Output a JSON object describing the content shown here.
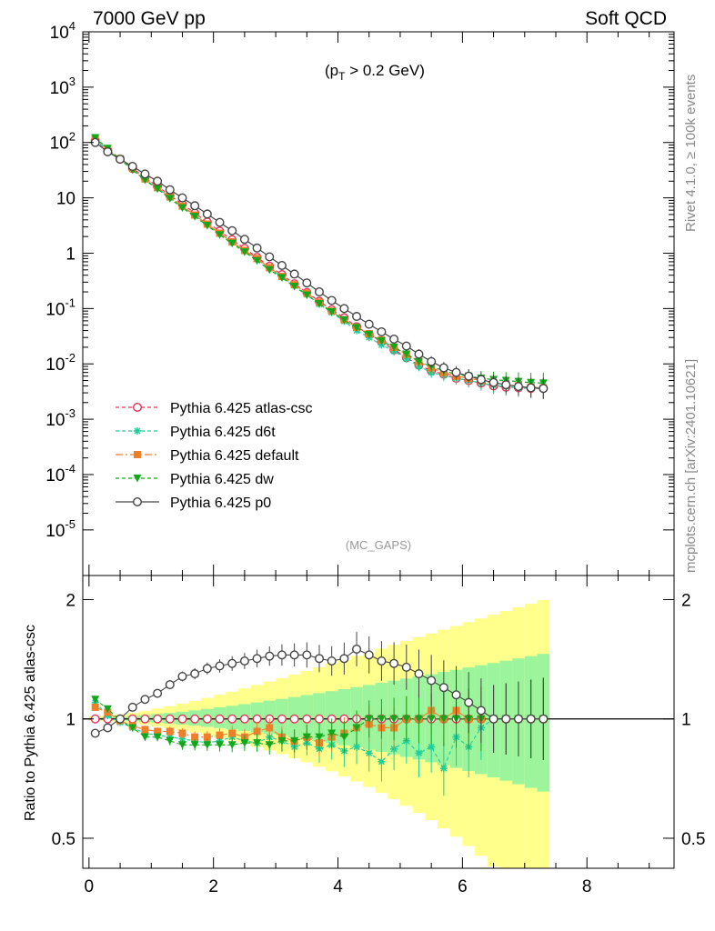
{
  "header": {
    "left": "7000 GeV pp",
    "right": "Soft QCD"
  },
  "side": {
    "rivet": "Rivet 4.1.0, ≥ 100k events",
    "mcplots": "mcplots.cern.ch [arXiv:2401.10621]"
  },
  "main": {
    "cut_label": "(p",
    "cut_sub": "T",
    "cut_rest": " > 0.2 GeV)",
    "watermark": "(MC_GAPS)"
  },
  "ratio": {
    "ylabel": "Ratio to Pythia 6.425 atlas-csc"
  },
  "legend": [
    {
      "label": "Pythia 6.425 atlas-csc",
      "color": "#e8325a",
      "marker": "open-circle",
      "dash": "4,3"
    },
    {
      "label": "Pythia 6.425 d6t",
      "color": "#1fcf9a",
      "marker": "star",
      "dash": "4,3"
    },
    {
      "label": "Pythia 6.425 default",
      "color": "#f07f2a",
      "marker": "square",
      "dash": "8,3,2,3"
    },
    {
      "label": "Pythia 6.425 dw",
      "color": "#11a81b",
      "marker": "down-triangle",
      "dash": "4,3"
    },
    {
      "label": "Pythia 6.425 p0",
      "color": "#454545",
      "marker": "open-circle",
      "dash": ""
    }
  ],
  "chart_data": [
    {
      "type": "scatter",
      "panel": "main",
      "yscale": "log",
      "xlim": [
        -0.1,
        9.4
      ],
      "ylim": [
        1.5e-06,
        10000
      ],
      "yticks": [
        "10^{-5}",
        "10^{-4}",
        "10^{-3}",
        "10^{-2}",
        "10^{-1}",
        "1",
        "10",
        "10^{2}",
        "10^{3}",
        "10^{4}"
      ],
      "xticks": [
        "0",
        "2",
        "4",
        "6",
        "8"
      ],
      "x": [
        0.1,
        0.3,
        0.5,
        0.7,
        0.9,
        1.1,
        1.3,
        1.5,
        1.7,
        1.9,
        2.1,
        2.3,
        2.5,
        2.7,
        2.9,
        3.1,
        3.3,
        3.5,
        3.7,
        3.9,
        4.1,
        4.3,
        4.5,
        4.7,
        4.9,
        5.1,
        5.3,
        5.5,
        5.7,
        5.9,
        6.1,
        6.3,
        6.5,
        6.7,
        6.9,
        7.1,
        7.3
      ],
      "series": [
        {
          "name": "Pythia 6.425 atlas-csc",
          "values": [
            108,
            72,
            50,
            34,
            23.5,
            16.2,
            11,
            7.7,
            5.3,
            3.65,
            2.5,
            1.75,
            1.22,
            0.84,
            0.58,
            0.41,
            0.28,
            0.195,
            0.135,
            0.095,
            0.068,
            0.047,
            0.034,
            0.025,
            0.018,
            0.013,
            0.0095,
            0.0075,
            0.0065,
            0.0055,
            0.005,
            0.0045,
            0.004,
            0.0038,
            0.0037,
            0.0036,
            0.0036
          ]
        },
        {
          "name": "Pythia 6.425 d6t",
          "values": [
            112,
            73,
            49,
            33,
            21.5,
            15,
            10.2,
            7,
            4.8,
            3.3,
            2.25,
            1.6,
            1.1,
            0.78,
            0.53,
            0.37,
            0.26,
            0.18,
            0.12,
            0.085,
            0.059,
            0.04,
            0.03,
            0.022,
            0.017,
            0.0125,
            0.009,
            0.007,
            0.0062,
            0.0055,
            0.005,
            0.0045,
            0.0041,
            0.0039,
            0.0037,
            0.0036,
            0.0036
          ]
        },
        {
          "name": "Pythia 6.425 default",
          "values": [
            118,
            76,
            51,
            34,
            22,
            15.3,
            10.4,
            7.1,
            4.9,
            3.35,
            2.3,
            1.6,
            1.12,
            0.8,
            0.55,
            0.38,
            0.27,
            0.19,
            0.13,
            0.09,
            0.063,
            0.046,
            0.035,
            0.027,
            0.02,
            0.015,
            0.011,
            0.0085,
            0.007,
            0.006,
            0.0055,
            0.005,
            0.0045,
            0.0042,
            0.004,
            0.0038,
            0.0037
          ]
        },
        {
          "name": "Pythia 6.425 dw",
          "values": [
            122,
            78,
            50,
            32,
            21,
            14.5,
            9.7,
            6.6,
            4.6,
            3.15,
            2.15,
            1.5,
            1.05,
            0.73,
            0.5,
            0.36,
            0.25,
            0.175,
            0.122,
            0.087,
            0.062,
            0.045,
            0.034,
            0.026,
            0.02,
            0.015,
            0.011,
            0.009,
            0.0075,
            0.0065,
            0.006,
            0.0055,
            0.0052,
            0.005,
            0.0048,
            0.0046,
            0.0045
          ]
        },
        {
          "name": "Pythia 6.425 p0",
          "values": [
            100,
            68,
            50,
            37,
            27,
            20,
            14,
            10,
            7.2,
            5.1,
            3.6,
            2.55,
            1.78,
            1.24,
            0.86,
            0.6,
            0.42,
            0.29,
            0.2,
            0.14,
            0.1,
            0.072,
            0.052,
            0.038,
            0.028,
            0.021,
            0.015,
            0.011,
            0.0085,
            0.007,
            0.006,
            0.0052,
            0.0046,
            0.0042,
            0.0039,
            0.0037,
            0.0036
          ]
        }
      ]
    },
    {
      "type": "scatter",
      "panel": "ratio",
      "yscale": "log",
      "ylabel": "Ratio to Pythia 6.425 atlas-csc",
      "xlim": [
        -0.1,
        9.4
      ],
      "ylim": [
        0.42,
        2.3
      ],
      "yticks": [
        "0.5",
        "1",
        "2"
      ],
      "xticks": [
        "0",
        "2",
        "4",
        "6",
        "8"
      ],
      "x": [
        0.1,
        0.3,
        0.5,
        0.7,
        0.9,
        1.1,
        1.3,
        1.5,
        1.7,
        1.9,
        2.1,
        2.3,
        2.5,
        2.7,
        2.9,
        3.1,
        3.3,
        3.5,
        3.7,
        3.9,
        4.1,
        4.3,
        4.5,
        4.7,
        4.9,
        5.1,
        5.3,
        5.5,
        5.7,
        5.9,
        6.1,
        6.3,
        6.5,
        6.7,
        6.9,
        7.1,
        7.3
      ],
      "series": [
        {
          "name": "Pythia 6.425 d6t",
          "values": [
            1.1,
            1.02,
            0.98,
            0.95,
            0.92,
            0.91,
            0.9,
            0.89,
            0.88,
            0.87,
            0.88,
            0.9,
            0.88,
            0.87,
            0.9,
            0.88,
            0.85,
            0.87,
            0.84,
            0.86,
            0.83,
            0.85,
            0.82,
            0.78,
            0.84,
            0.88,
            0.82,
            0.85,
            0.75,
            0.9,
            0.85,
            0.95,
            1.0,
            1.0,
            1.0,
            1.0,
            1.0
          ]
        },
        {
          "name": "Pythia 6.425 default",
          "values": [
            1.07,
            1.04,
            0.99,
            0.96,
            0.94,
            0.93,
            0.93,
            0.92,
            0.9,
            0.9,
            0.91,
            0.92,
            0.9,
            0.93,
            0.95,
            0.9,
            0.88,
            0.9,
            0.87,
            0.9,
            0.92,
            0.95,
            0.97,
            0.95,
            0.95,
            1.0,
            1.0,
            1.05,
            1.0,
            1.05,
            1.0,
            1.0,
            1.0,
            1.0,
            1.0,
            1.0,
            1.0
          ]
        },
        {
          "name": "Pythia 6.425 dw",
          "values": [
            1.12,
            1.06,
            0.99,
            0.95,
            0.9,
            0.9,
            0.88,
            0.86,
            0.86,
            0.86,
            0.86,
            0.86,
            0.87,
            0.87,
            0.86,
            0.88,
            0.88,
            0.9,
            0.9,
            0.92,
            0.9,
            0.95,
            1.0,
            1.0,
            1.0,
            1.0,
            1.0,
            1.0,
            1.0,
            1.0,
            1.0,
            1.0,
            1.0,
            1.0,
            1.0,
            1.0,
            1.0
          ]
        },
        {
          "name": "Pythia 6.425 p0",
          "values": [
            0.92,
            0.95,
            1.0,
            1.07,
            1.12,
            1.16,
            1.22,
            1.28,
            1.3,
            1.34,
            1.36,
            1.38,
            1.4,
            1.42,
            1.44,
            1.45,
            1.45,
            1.45,
            1.42,
            1.4,
            1.42,
            1.5,
            1.45,
            1.4,
            1.38,
            1.35,
            1.3,
            1.25,
            1.2,
            1.15,
            1.1,
            1.05,
            1.0,
            1.0,
            1.0,
            1.0,
            1.0
          ]
        }
      ]
    }
  ]
}
